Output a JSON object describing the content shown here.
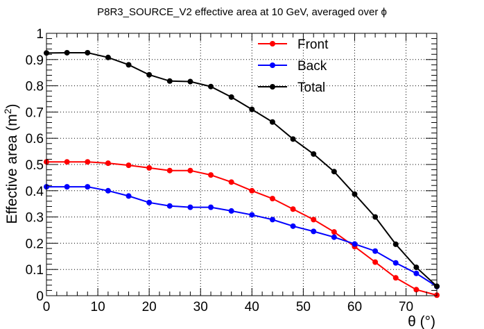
{
  "chart_data": {
    "type": "line",
    "title": "P8R3_SOURCE_V2 effective area at 10 GeV, averaged over ϕ",
    "xlabel": "θ (°)",
    "ylabel_main": "Effective area (m",
    "ylabel_sup": "2",
    "ylabel_close": ")",
    "xlim": [
      0,
      76
    ],
    "ylim": [
      0,
      1
    ],
    "grid": true,
    "legend_position": "top-center",
    "x_ticks": [
      0,
      10,
      20,
      30,
      40,
      50,
      60,
      70
    ],
    "x_tick_labels": [
      "0",
      "10",
      "20",
      "30",
      "40",
      "50",
      "60",
      "70"
    ],
    "y_ticks": [
      0,
      0.1,
      0.2,
      0.3,
      0.4,
      0.5,
      0.6,
      0.7,
      0.8,
      0.9,
      1
    ],
    "y_tick_labels": [
      "0",
      "0.1",
      "0.2",
      "0.3",
      "0.4",
      "0.5",
      "0.6",
      "0.7",
      "0.8",
      "0.9",
      "1"
    ],
    "x": [
      0,
      4,
      8,
      12,
      16,
      20,
      24,
      28,
      32,
      36,
      40,
      44,
      48,
      52,
      56,
      60,
      64,
      68,
      72,
      76
    ],
    "series": [
      {
        "name": "Front",
        "color": "#ff0000",
        "values": [
          0.51,
          0.51,
          0.51,
          0.505,
          0.497,
          0.487,
          0.477,
          0.477,
          0.46,
          0.433,
          0.4,
          0.37,
          0.33,
          0.29,
          0.243,
          0.187,
          0.128,
          0.068,
          0.023,
          0.002
        ]
      },
      {
        "name": "Back",
        "color": "#0000ff",
        "values": [
          0.415,
          0.415,
          0.415,
          0.4,
          0.38,
          0.355,
          0.342,
          0.337,
          0.337,
          0.323,
          0.308,
          0.29,
          0.265,
          0.245,
          0.223,
          0.197,
          0.17,
          0.125,
          0.085,
          0.035
        ]
      },
      {
        "name": "Total",
        "color": "#000000",
        "values": [
          0.925,
          0.926,
          0.926,
          0.908,
          0.88,
          0.842,
          0.818,
          0.816,
          0.797,
          0.757,
          0.71,
          0.662,
          0.597,
          0.54,
          0.473,
          0.387,
          0.3,
          0.196,
          0.108,
          0.036
        ]
      }
    ]
  }
}
